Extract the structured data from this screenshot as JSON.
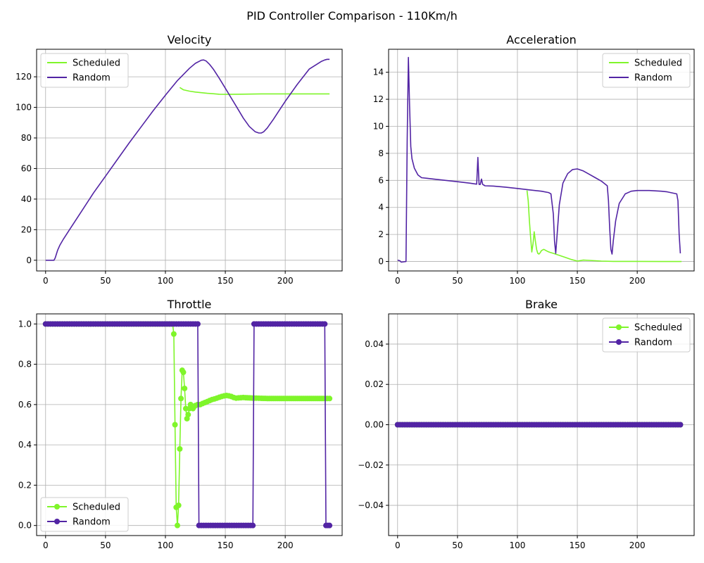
{
  "figure": {
    "title": "PID Controller Comparison - 110Km/h"
  },
  "colors": {
    "Scheduled": "#7ff52a",
    "Random": "#5224a4"
  },
  "chart_data": [
    {
      "type": "line",
      "title": "Velocity",
      "xlim": [
        -7.5,
        247.5
      ],
      "ylim": [
        -7,
        138
      ],
      "xticks": [
        0,
        50,
        100,
        150,
        200
      ],
      "yticks": [
        0,
        20,
        40,
        60,
        80,
        100,
        120
      ],
      "grid": true,
      "legend": "top-left",
      "markers": false,
      "series": [
        {
          "name": "Scheduled",
          "color": "#7ff52a",
          "x": [
            112,
            113,
            115,
            120,
            125,
            130,
            135,
            140,
            145,
            150,
            160,
            170,
            180,
            190,
            200,
            210,
            220,
            230,
            237
          ],
          "y": [
            113,
            112.5,
            111.5,
            110.6,
            110,
            109.6,
            109.2,
            108.9,
            108.6,
            108.5,
            108.6,
            108.7,
            108.8,
            108.8,
            108.8,
            108.8,
            108.8,
            108.8,
            108.8
          ]
        },
        {
          "name": "Random",
          "color": "#5224a4",
          "x": [
            0,
            7,
            8,
            9,
            10,
            12,
            15,
            20,
            30,
            40,
            50,
            60,
            70,
            80,
            90,
            100,
            110,
            120,
            125,
            130,
            132,
            134,
            137,
            140,
            145,
            150,
            155,
            160,
            165,
            170,
            175,
            178,
            180,
            182,
            185,
            190,
            195,
            200,
            210,
            220,
            230,
            233,
            235,
            237
          ],
          "y": [
            0,
            0,
            1.5,
            4,
            6.5,
            10,
            14,
            20,
            32,
            44,
            55,
            66,
            77,
            87.5,
            98,
            108,
            117.5,
            125.5,
            128.8,
            130.8,
            131,
            130.3,
            128,
            125,
            119,
            112.5,
            106,
            99.5,
            93,
            87.5,
            84,
            83.2,
            83.2,
            84,
            86.5,
            92,
            98,
            104,
            115,
            125,
            130,
            131,
            131.4,
            131.4
          ]
        }
      ]
    },
    {
      "type": "line",
      "title": "Acceleration",
      "xlim": [
        -7.5,
        247.5
      ],
      "ylim": [
        -0.7,
        15.7
      ],
      "xticks": [
        0,
        50,
        100,
        150,
        200
      ],
      "yticks": [
        0,
        2,
        4,
        6,
        8,
        10,
        12,
        14
      ],
      "grid": true,
      "legend": "top-right",
      "markers": false,
      "series": [
        {
          "name": "Scheduled",
          "color": "#7ff52a",
          "x": [
            108,
            109,
            110,
            111,
            112,
            113,
            114,
            115,
            116,
            117,
            118,
            119,
            120,
            121,
            122,
            123,
            124,
            125,
            127,
            130,
            135,
            140,
            145,
            150,
            155,
            160,
            170,
            180,
            200,
            220,
            237
          ],
          "y": [
            5.25,
            4.5,
            3,
            1.8,
            0.7,
            1.3,
            2.2,
            1.5,
            0.9,
            0.6,
            0.55,
            0.65,
            0.8,
            0.85,
            0.9,
            0.85,
            0.8,
            0.75,
            0.68,
            0.6,
            0.45,
            0.3,
            0.15,
            0.03,
            0.1,
            0.08,
            0.03,
            0.01,
            0.01,
            0,
            0
          ]
        },
        {
          "name": "Random",
          "color": "#5224a4",
          "x": [
            0,
            2,
            3,
            7,
            8,
            9,
            10,
            11,
            12,
            14,
            17,
            20,
            25,
            30,
            40,
            50,
            60,
            66,
            67,
            68,
            69,
            70,
            71,
            72,
            73,
            80,
            90,
            100,
            110,
            120,
            126,
            128,
            130,
            131,
            132,
            133,
            135,
            138,
            142,
            146,
            150,
            155,
            160,
            165,
            170,
            175,
            176,
            177,
            178,
            179,
            180,
            182,
            185,
            190,
            195,
            200,
            210,
            220,
            225,
            233,
            234,
            235,
            236
          ],
          "y": [
            0.1,
            0.05,
            -0.05,
            0,
            9,
            15.1,
            11.5,
            8.5,
            7.6,
            6.9,
            6.4,
            6.2,
            6.15,
            6.1,
            6.0,
            5.9,
            5.8,
            5.72,
            7.7,
            5.7,
            5.7,
            6.1,
            5.7,
            5.65,
            5.6,
            5.58,
            5.5,
            5.4,
            5.3,
            5.2,
            5.1,
            5.0,
            3.5,
            1.5,
            0.6,
            1.8,
            4.2,
            5.8,
            6.5,
            6.8,
            6.85,
            6.7,
            6.45,
            6.2,
            5.95,
            5.6,
            4.5,
            2.5,
            0.9,
            0.55,
            1.5,
            3.0,
            4.3,
            5.0,
            5.2,
            5.25,
            5.25,
            5.2,
            5.15,
            5.0,
            4.5,
            2.0,
            0.6
          ]
        }
      ]
    },
    {
      "type": "line",
      "title": "Throttle",
      "xlim": [
        -7.5,
        247.5
      ],
      "ylim": [
        -0.05,
        1.05
      ],
      "xticks": [
        0,
        50,
        100,
        150,
        200
      ],
      "yticks": [
        0.0,
        0.2,
        0.4,
        0.6,
        0.8,
        1.0
      ],
      "grid": true,
      "legend": "bottom-left",
      "markers": true,
      "series": [
        {
          "name": "Scheduled",
          "color": "#7ff52a",
          "x": [
            0,
            106,
            107,
            108,
            109,
            110,
            111,
            112,
            113,
            114,
            115,
            116,
            117,
            118,
            119,
            120,
            121,
            122,
            123,
            124,
            125,
            127,
            129,
            131,
            133,
            135,
            137,
            139,
            141,
            143,
            145,
            147,
            149,
            151,
            153,
            155,
            157,
            159,
            161,
            163,
            165,
            167,
            170,
            173,
            176,
            180,
            185,
            190,
            195,
            200,
            205,
            210,
            215,
            220,
            225,
            230,
            235,
            237
          ],
          "y": [
            1,
            1,
            0.95,
            0.5,
            0.09,
            0,
            0.1,
            0.38,
            0.63,
            0.77,
            0.76,
            0.68,
            0.58,
            0.53,
            0.55,
            0.58,
            0.6,
            0.59,
            0.58,
            0.59,
            0.595,
            0.6,
            0.6,
            0.605,
            0.61,
            0.615,
            0.62,
            0.625,
            0.628,
            0.632,
            0.636,
            0.64,
            0.643,
            0.645,
            0.643,
            0.64,
            0.635,
            0.632,
            0.633,
            0.634,
            0.635,
            0.634,
            0.633,
            0.632,
            0.632,
            0.631,
            0.63,
            0.63,
            0.63,
            0.63,
            0.63,
            0.63,
            0.63,
            0.63,
            0.63,
            0.63,
            0.63,
            0.63
          ]
        },
        {
          "name": "Random",
          "color": "#5224a4",
          "x": [
            0,
            127,
            128,
            173,
            174,
            233,
            234,
            237
          ],
          "y": [
            1,
            1,
            0,
            0,
            1,
            1,
            0,
            0
          ]
        }
      ]
    },
    {
      "type": "line",
      "title": "Brake",
      "xlim": [
        -7.5,
        247.5
      ],
      "ylim": [
        -0.055,
        0.055
      ],
      "xticks": [
        0,
        50,
        100,
        150,
        200
      ],
      "yticks": [
        -0.04,
        -0.02,
        0.0,
        0.02,
        0.04
      ],
      "yticklabels": [
        "−0.04",
        "−0.02",
        "0.00",
        "0.02",
        "0.04"
      ],
      "grid": true,
      "legend": "top-right",
      "markers": true,
      "series": [
        {
          "name": "Scheduled",
          "color": "#7ff52a",
          "x": [
            0,
            236
          ],
          "y": [
            0,
            0
          ]
        },
        {
          "name": "Random",
          "color": "#5224a4",
          "x": [
            0,
            236
          ],
          "y": [
            0,
            0
          ]
        }
      ]
    }
  ]
}
